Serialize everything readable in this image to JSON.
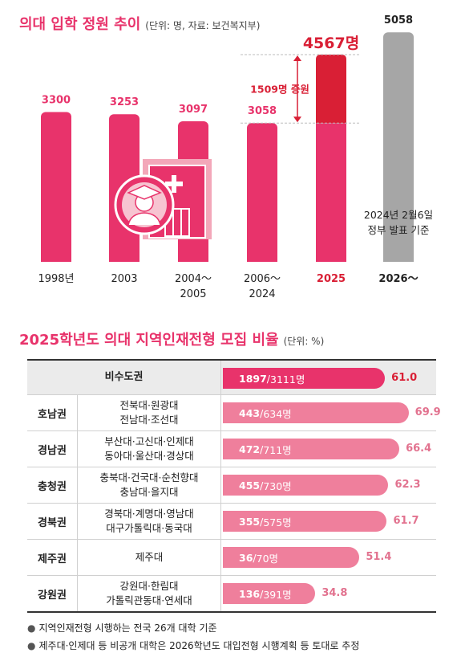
{
  "header1": {
    "title": "의대 입학 정원 추이",
    "unit": "(단위: 명, 자료: 보건복지부)"
  },
  "header2": {
    "title": "2025학년도 의대 지역인재전형 모집 비율",
    "unit": "(단위: %)"
  },
  "colors": {
    "accent": "#e8336b",
    "highlight": "#d91f35",
    "future": "#a6a6a6",
    "bar2": "#ef7f9c"
  },
  "icon": "medical-student-icon",
  "chart_data": [
    {
      "type": "bar",
      "title": "의대 입학 정원 추이",
      "unit": "(단위: 명, 자료: 보건복지부)",
      "categories": [
        "1998년",
        "2003",
        "2004~2005",
        "2006~2024",
        "2025",
        "2026~"
      ],
      "category_lines": [
        [
          "1998년"
        ],
        [
          "2003"
        ],
        [
          "2004～",
          "2005"
        ],
        [
          "2006～",
          "2024"
        ],
        [
          "2025"
        ],
        [
          "2026～"
        ]
      ],
      "values": [
        3300,
        3253,
        3097,
        3058,
        4567,
        5058
      ],
      "value_labels": [
        "3300",
        "3253",
        "3097",
        "3058",
        "4567명",
        "5058"
      ],
      "increase_label": "1509명 증원",
      "future_note": [
        "2024년 2월6일",
        "정부 발표 기준"
      ],
      "ylim": [
        0,
        5400
      ]
    },
    {
      "type": "bar",
      "title": "2025학년도 의대 지역인재전형 모집 비율",
      "unit": "(단위: %)",
      "rows": [
        {
          "region": "",
          "universities": [
            "비수도권"
          ],
          "selected": "1897",
          "total": "3111명",
          "percent": 61.0,
          "percent_label": "61.0"
        },
        {
          "region": "호남권",
          "universities": [
            "전북대·원광대",
            "전남대·조선대"
          ],
          "selected": "443",
          "total": "634명",
          "percent": 69.9,
          "percent_label": "69.9"
        },
        {
          "region": "경남권",
          "universities": [
            "부산대·고신대·인제대",
            "동아대·울산대·경상대"
          ],
          "selected": "472",
          "total": "711명",
          "percent": 66.4,
          "percent_label": "66.4"
        },
        {
          "region": "충청권",
          "universities": [
            "충북대·건국대·순천향대",
            "충남대·을지대"
          ],
          "selected": "455",
          "total": "730명",
          "percent": 62.3,
          "percent_label": "62.3"
        },
        {
          "region": "경북권",
          "universities": [
            "경북대·계명대·영남대",
            "대구가톨릭대·동국대"
          ],
          "selected": "355",
          "total": "575명",
          "percent": 61.7,
          "percent_label": "61.7"
        },
        {
          "region": "제주권",
          "universities": [
            "제주대"
          ],
          "selected": "36",
          "total": "70명",
          "percent": 51.4,
          "percent_label": "51.4"
        },
        {
          "region": "강원권",
          "universities": [
            "강원대·한림대",
            "가톨릭관동대·연세대"
          ],
          "selected": "136",
          "total": "391명",
          "percent": 34.8,
          "percent_label": "34.8"
        }
      ]
    }
  ],
  "notes": [
    "지역인재전형 시행하는 전국 26개 대학 기준",
    "제주대·인제대 등 비공개 대학은 2026학년도 대입전형 시행계획 등 토대로 추정"
  ]
}
